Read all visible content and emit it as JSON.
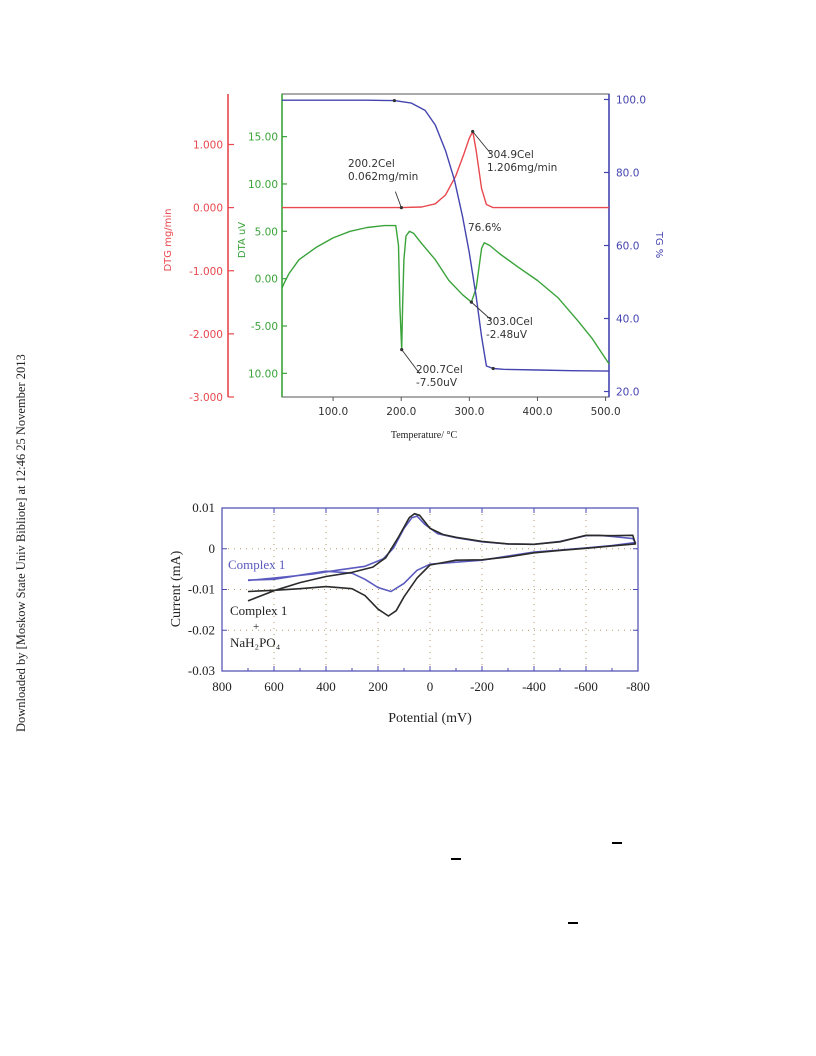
{
  "watermark": "Downloaded by [Moskow State Univ Bibliote] at 12:46 25 November 2013",
  "colors": {
    "dtg": "#e8484e",
    "dta": "#3aa33a",
    "tg": "#4444b0",
    "ink": "#222222",
    "cv_blue": "#5a5abf",
    "cv_black": "#2b2b2b"
  },
  "chart_data": [
    {
      "type": "line",
      "xlabel": "Temperature/ °C",
      "x_ticks": [
        "100.0",
        "200.0",
        "300.0",
        "400.0",
        "500.0"
      ],
      "xlim": [
        25,
        505
      ],
      "axes": {
        "dtg": {
          "label": "DTG mg/min",
          "ticks": [
            "1.000",
            "0.000",
            "-1.000",
            "-2.000",
            "-3.000"
          ],
          "ylim": [
            -3.0,
            1.8
          ]
        },
        "dta": {
          "label": "DTA uV",
          "ticks": [
            "15.00",
            "10.00",
            "5.00",
            "0.00",
            "-5.00",
            "10.00"
          ],
          "ylim": [
            -12.5,
            19.5
          ]
        },
        "tg": {
          "label": "TG %",
          "ticks": [
            "100.0",
            "80.0",
            "60.0",
            "40.0",
            "20.0"
          ],
          "ylim": [
            18.5,
            101.5
          ]
        }
      },
      "series": [
        {
          "name": "DTG",
          "axis": "dtg",
          "x": [
            25,
            150,
            200,
            230,
            250,
            265,
            280,
            292,
            300,
            305,
            310,
            318,
            325,
            335,
            350,
            400,
            505
          ],
          "y": [
            0.0,
            0.0,
            0.0,
            0.01,
            0.06,
            0.2,
            0.5,
            0.85,
            1.1,
            1.206,
            0.9,
            0.3,
            0.05,
            0.0,
            0.0,
            0.0,
            0.0
          ]
        },
        {
          "name": "DTA",
          "axis": "dta",
          "x": [
            25,
            28,
            35,
            50,
            75,
            100,
            125,
            150,
            175,
            192,
            196,
            198,
            200.7,
            202,
            204,
            207,
            212,
            218,
            230,
            250,
            270,
            290,
            303,
            310,
            318,
            322,
            330,
            345,
            370,
            400,
            430,
            460,
            480,
            505
          ],
          "y": [
            -1.0,
            -0.5,
            0.5,
            2.0,
            3.3,
            4.3,
            5.0,
            5.4,
            5.6,
            5.6,
            3.5,
            -3.0,
            -7.5,
            -3.0,
            2.0,
            4.5,
            5.0,
            4.8,
            3.7,
            2.0,
            -0.2,
            -1.7,
            -2.48,
            -1.0,
            3.2,
            3.8,
            3.5,
            2.6,
            1.3,
            -0.2,
            -2.0,
            -4.5,
            -6.3,
            -9.0
          ]
        },
        {
          "name": "TG",
          "axis": "tg",
          "x": [
            25,
            150,
            190,
            215,
            235,
            250,
            265,
            278,
            290,
            300,
            310,
            318,
            325,
            335,
            350,
            400,
            450,
            505
          ],
          "y": [
            99.8,
            99.8,
            99.7,
            99.0,
            97.0,
            93.0,
            86.0,
            78.0,
            68.0,
            58.0,
            46.0,
            35.0,
            27.0,
            26.3,
            26.1,
            25.9,
            25.7,
            25.6
          ]
        }
      ],
      "annotations": [
        {
          "line1": "200.2Cel",
          "line2": "0.062mg/min"
        },
        {
          "line1": "304.9Cel",
          "line2": "1.206mg/min"
        },
        {
          "line1": "76.6%",
          "line2": ""
        },
        {
          "line1": "303.0Cel",
          "line2": "-2.48uV"
        },
        {
          "line1": "200.7Cel",
          "line2": "-7.50uV"
        }
      ]
    },
    {
      "type": "line",
      "xlabel": "Potential (mV)",
      "ylabel": "Current (mA)",
      "x_ticks": [
        "800",
        "600",
        "400",
        "200",
        "0",
        "-200",
        "-400",
        "-600",
        "-800"
      ],
      "y_ticks": [
        "0.01",
        "0",
        "-0.01",
        "-0.02",
        "-0.03"
      ],
      "xlim": [
        800,
        -800
      ],
      "ylim": [
        -0.03,
        0.01
      ],
      "legend": {
        "blue_label": "Complex 1",
        "black_label_line1": "Complex 1",
        "black_label_plus": "+",
        "black_label_line2": "NaH₂PO₄"
      },
      "series": [
        {
          "name": "Complex 1",
          "color": "blue",
          "x": [
            700,
            600,
            450,
            350,
            250,
            180,
            140,
            100,
            70,
            50,
            20,
            -30,
            -100,
            -200,
            -300,
            -400,
            -500,
            -600,
            -650,
            -700,
            -780,
            -790,
            -700,
            -600,
            -500,
            -400,
            -300,
            -200,
            -100,
            0,
            50,
            100,
            150,
            200,
            250,
            300,
            400,
            500,
            600,
            700
          ],
          "y": [
            -0.0078,
            -0.0072,
            -0.0062,
            -0.0052,
            -0.0043,
            -0.0025,
            0.0002,
            0.005,
            0.0076,
            0.008,
            0.006,
            0.0037,
            0.0027,
            0.0017,
            0.0012,
            0.0011,
            0.0018,
            0.0032,
            0.0033,
            0.003,
            0.0025,
            0.0015,
            0.0008,
            0.0002,
            -0.0003,
            -0.0008,
            -0.0018,
            -0.0028,
            -0.0033,
            -0.0038,
            -0.0053,
            -0.0085,
            -0.0105,
            -0.0095,
            -0.0075,
            -0.006,
            -0.0055,
            -0.0065,
            -0.0075,
            -0.0077
          ]
        },
        {
          "name": "Complex 1 + NaH₂PO₄",
          "color": "black",
          "x": [
            700,
            600,
            500,
            400,
            300,
            220,
            170,
            120,
            80,
            60,
            40,
            0,
            -50,
            -100,
            -200,
            -300,
            -400,
            -500,
            -600,
            -700,
            -780,
            -790,
            -700,
            -600,
            -500,
            -400,
            -300,
            -200,
            -100,
            0,
            50,
            100,
            130,
            160,
            200,
            250,
            300,
            400,
            500,
            600,
            700
          ],
          "y": [
            -0.0128,
            -0.0103,
            -0.0083,
            -0.0068,
            -0.0058,
            -0.0045,
            -0.0022,
            0.003,
            0.0076,
            0.0086,
            0.0082,
            0.005,
            0.0035,
            0.0028,
            0.0018,
            0.0012,
            0.0011,
            0.0017,
            0.0033,
            0.0032,
            0.0033,
            0.0012,
            0.0007,
            0.0001,
            -0.0004,
            -0.001,
            -0.002,
            -0.0027,
            -0.0028,
            -0.004,
            -0.0072,
            -0.0118,
            -0.0152,
            -0.0165,
            -0.0148,
            -0.0115,
            -0.0098,
            -0.0093,
            -0.0098,
            -0.0102,
            -0.0105
          ]
        }
      ]
    }
  ]
}
